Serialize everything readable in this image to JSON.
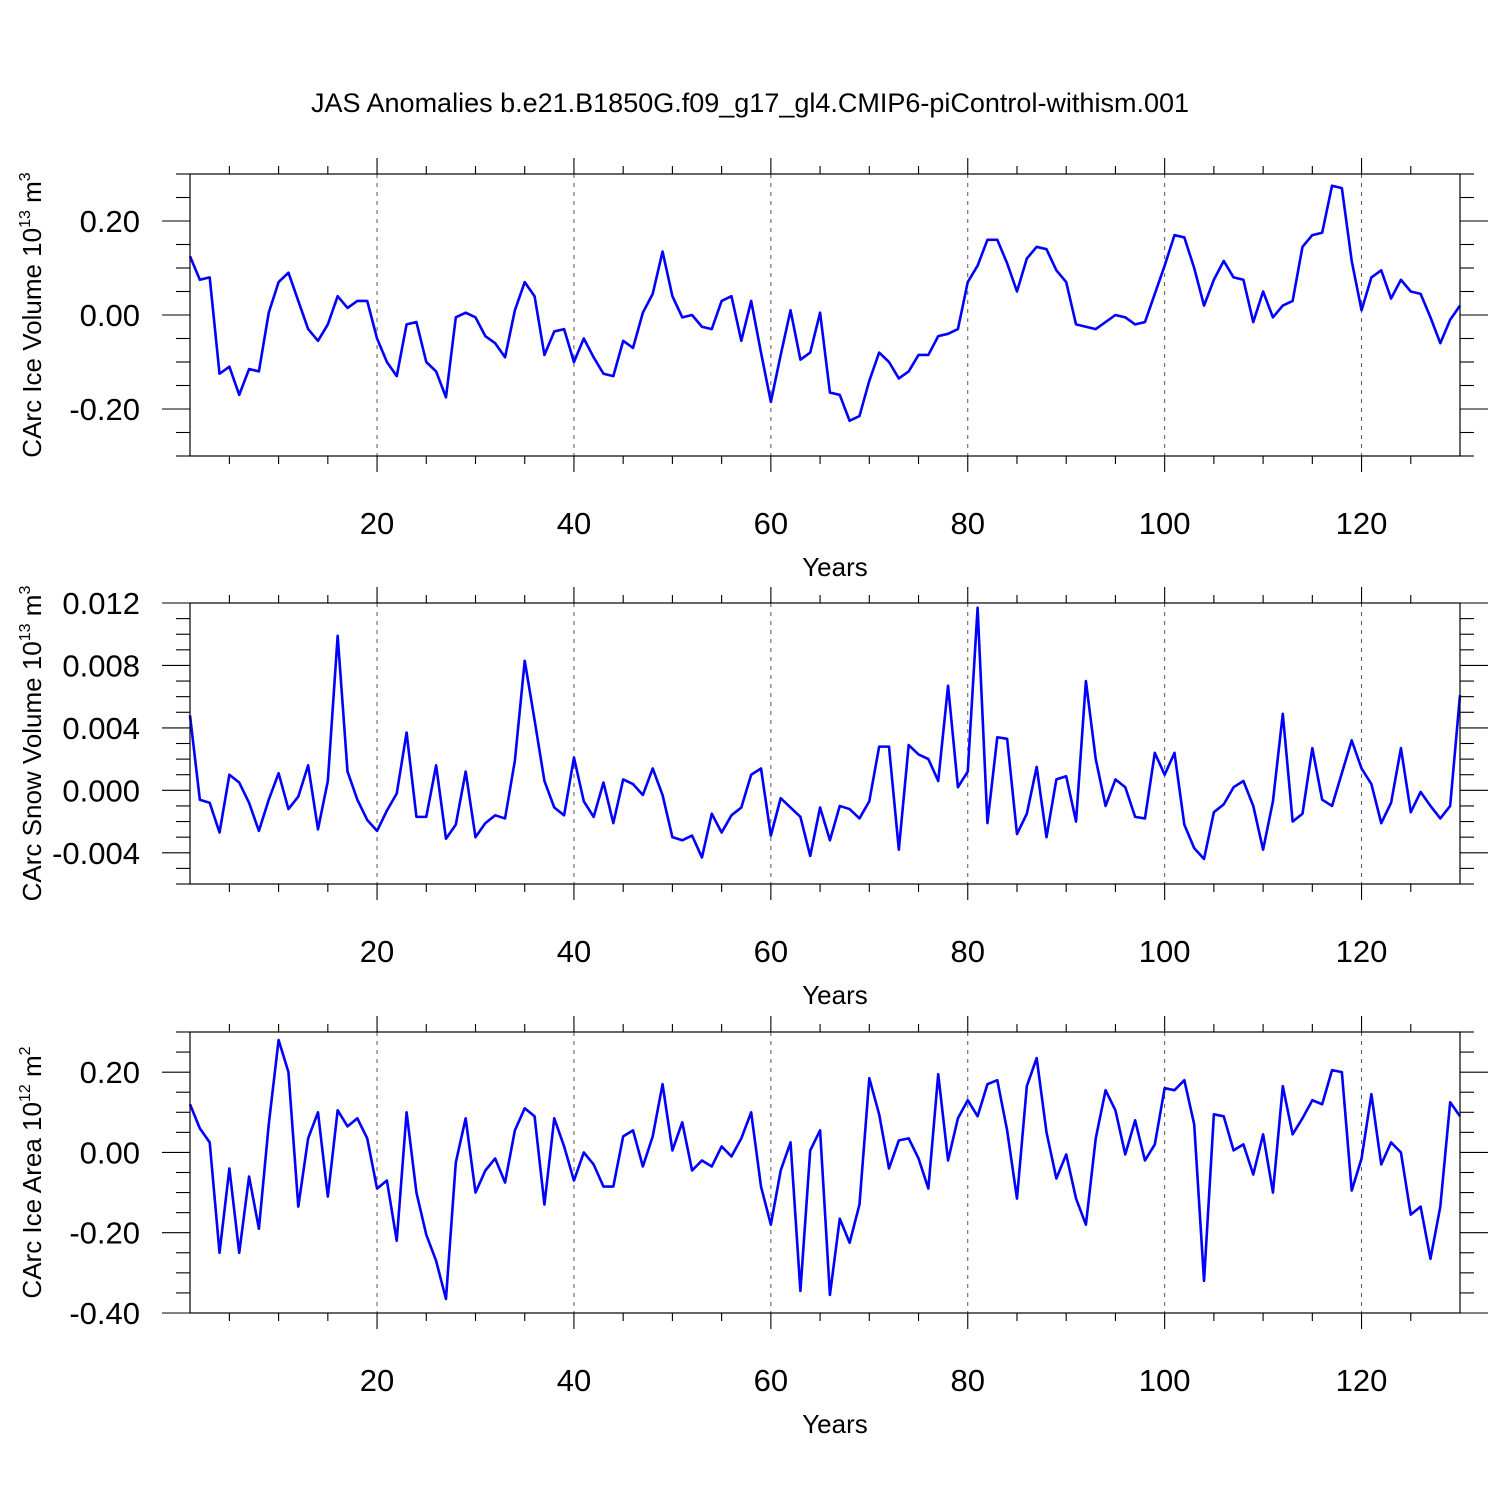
{
  "title": "JAS Anomalies b.e21.B1850G.f09_g17_gl4.CMIP6-piControl-withism.001",
  "chart_data": [
    {
      "type": "line",
      "id": "ice-volume",
      "ylabel_main": "CArc Ice Volume 10",
      "ylabel_exp": "13",
      "ylabel_unit": " m",
      "ylabel_unit_exp": "3",
      "xlabel": "Years",
      "xlim": [
        1,
        130
      ],
      "ylim": [
        -0.3,
        0.3
      ],
      "xticks": [
        20,
        40,
        60,
        80,
        100,
        120
      ],
      "xtick_labels": [
        "20",
        "40",
        "60",
        "80",
        "100",
        "120"
      ],
      "yticks": [
        -0.2,
        0.0,
        0.2
      ],
      "ytick_labels": [
        "-0.20",
        "0.00",
        "0.20"
      ],
      "yminor_step": 0.05,
      "grid": "x-dashed",
      "series": [
        {
          "color": "#0000ff",
          "x_start": 1,
          "values": [
            0.125,
            0.075,
            0.08,
            -0.125,
            -0.11,
            -0.17,
            -0.115,
            -0.12,
            0.005,
            0.07,
            0.09,
            0.03,
            -0.03,
            -0.055,
            -0.02,
            0.04,
            0.015,
            0.03,
            0.03,
            -0.05,
            -0.1,
            -0.13,
            -0.02,
            -0.015,
            -0.1,
            -0.12,
            -0.175,
            -0.005,
            0.005,
            -0.005,
            -0.045,
            -0.06,
            -0.09,
            0.01,
            0.07,
            0.04,
            -0.085,
            -0.035,
            -0.03,
            -0.1,
            -0.05,
            -0.09,
            -0.125,
            -0.13,
            -0.055,
            -0.07,
            0.005,
            0.045,
            0.135,
            0.04,
            -0.005,
            0.0,
            -0.025,
            -0.03,
            0.03,
            0.04,
            -0.055,
            0.03,
            -0.08,
            -0.185,
            -0.085,
            0.01,
            -0.095,
            -0.08,
            0.005,
            -0.165,
            -0.17,
            -0.225,
            -0.215,
            -0.14,
            -0.08,
            -0.1,
            -0.135,
            -0.12,
            -0.085,
            -0.085,
            -0.045,
            -0.04,
            -0.03,
            0.07,
            0.105,
            0.16,
            0.16,
            0.11,
            0.05,
            0.12,
            0.145,
            0.14,
            0.095,
            0.07,
            -0.02,
            -0.025,
            -0.03,
            -0.015,
            0.0,
            -0.005,
            -0.02,
            -0.015,
            0.045,
            0.105,
            0.17,
            0.165,
            0.1,
            0.02,
            0.075,
            0.115,
            0.08,
            0.075,
            -0.015,
            0.05,
            -0.005,
            0.02,
            0.03,
            0.145,
            0.17,
            0.175,
            0.275,
            0.27,
            0.115,
            0.01,
            0.08,
            0.095,
            0.035,
            0.075,
            0.05,
            0.045,
            -0.005,
            -0.06,
            -0.01,
            0.02
          ]
        }
      ]
    },
    {
      "type": "line",
      "id": "snow-volume",
      "ylabel_main": "CArc Snow Volume 10",
      "ylabel_exp": "13",
      "ylabel_unit": " m",
      "ylabel_unit_exp": "3",
      "xlabel": "Years",
      "xlim": [
        1,
        130
      ],
      "ylim": [
        -0.006,
        0.012
      ],
      "xticks": [
        20,
        40,
        60,
        80,
        100,
        120
      ],
      "xtick_labels": [
        "20",
        "40",
        "60",
        "80",
        "100",
        "120"
      ],
      "yticks": [
        -0.004,
        0.0,
        0.004,
        0.008,
        0.012
      ],
      "ytick_labels": [
        "-0.004",
        "0.000",
        "0.004",
        "0.008",
        "0.012"
      ],
      "yminor_step": 0.001,
      "grid": "x-dashed",
      "series": [
        {
          "color": "#0000ff",
          "x_start": 1,
          "values": [
            0.0048,
            -0.0006,
            -0.0008,
            -0.0027,
            0.001,
            0.0005,
            -0.0008,
            -0.0026,
            -0.0006,
            0.0011,
            -0.0012,
            -0.0004,
            0.0016,
            -0.0025,
            0.0006,
            0.0099,
            0.0012,
            -0.0006,
            -0.0019,
            -0.0026,
            -0.0013,
            -0.0002,
            0.0037,
            -0.0017,
            -0.0017,
            0.0016,
            -0.0031,
            -0.0022,
            0.0012,
            -0.003,
            -0.0021,
            -0.0016,
            -0.0018,
            0.0019,
            0.0083,
            0.0045,
            0.0006,
            -0.0011,
            -0.0016,
            0.0021,
            -0.0007,
            -0.0017,
            0.0005,
            -0.0021,
            0.0007,
            0.0004,
            -0.0003,
            0.0014,
            -0.0003,
            -0.003,
            -0.0032,
            -0.0029,
            -0.0043,
            -0.0015,
            -0.0027,
            -0.0016,
            -0.0011,
            0.001,
            0.0014,
            -0.0029,
            -0.0005,
            -0.0011,
            -0.0017,
            -0.0042,
            -0.0011,
            -0.0032,
            -0.001,
            -0.0012,
            -0.0018,
            -0.0007,
            0.0028,
            0.0028,
            -0.0038,
            0.0029,
            0.0023,
            0.002,
            0.0006,
            0.0067,
            0.0002,
            0.0012,
            0.0117,
            -0.0021,
            0.0034,
            0.0033,
            -0.0028,
            -0.0015,
            0.0015,
            -0.003,
            0.0007,
            0.0009,
            -0.002,
            0.007,
            0.002,
            -0.001,
            0.0007,
            0.0002,
            -0.0017,
            -0.0018,
            0.0024,
            0.001,
            0.0024,
            -0.0022,
            -0.0037,
            -0.0044,
            -0.0014,
            -0.0009,
            0.0002,
            0.0006,
            -0.001,
            -0.0038,
            -0.0007,
            0.0049,
            -0.002,
            -0.0015,
            0.0027,
            -0.0006,
            -0.001,
            0.0011,
            0.0032,
            0.0014,
            0.0004,
            -0.0021,
            -0.0008,
            0.0027,
            -0.0014,
            -0.0001,
            -0.001,
            -0.0018,
            -0.001,
            0.0061
          ]
        }
      ]
    },
    {
      "type": "line",
      "id": "ice-area",
      "ylabel_main": "CArc Ice Area 10",
      "ylabel_exp": "12",
      "ylabel_unit": " m",
      "ylabel_unit_exp": "2",
      "xlabel": "Years",
      "xlim": [
        1,
        130
      ],
      "ylim": [
        -0.4,
        0.3
      ],
      "xticks": [
        20,
        40,
        60,
        80,
        100,
        120
      ],
      "xtick_labels": [
        "20",
        "40",
        "60",
        "80",
        "100",
        "120"
      ],
      "yticks": [
        -0.4,
        -0.2,
        0.0,
        0.2
      ],
      "ytick_labels": [
        "-0.40",
        "-0.20",
        "0.00",
        "0.20"
      ],
      "yminor_step": 0.05,
      "grid": "x-dashed",
      "series": [
        {
          "color": "#0000ff",
          "x_start": 1,
          "values": [
            0.12,
            0.06,
            0.025,
            -0.25,
            -0.04,
            -0.25,
            -0.06,
            -0.19,
            0.07,
            0.28,
            0.2,
            -0.135,
            0.035,
            0.1,
            -0.11,
            0.105,
            0.065,
            0.085,
            0.035,
            -0.09,
            -0.07,
            -0.22,
            0.1,
            -0.1,
            -0.205,
            -0.27,
            -0.365,
            -0.025,
            0.085,
            -0.1,
            -0.045,
            -0.015,
            -0.075,
            0.055,
            0.11,
            0.09,
            -0.13,
            0.085,
            0.015,
            -0.07,
            0.0,
            -0.03,
            -0.085,
            -0.085,
            0.04,
            0.055,
            -0.035,
            0.04,
            0.17,
            0.005,
            0.075,
            -0.045,
            -0.02,
            -0.035,
            0.015,
            -0.01,
            0.035,
            0.1,
            -0.085,
            -0.18,
            -0.045,
            0.025,
            -0.345,
            0.005,
            0.055,
            -0.355,
            -0.165,
            -0.225,
            -0.13,
            0.185,
            0.095,
            -0.04,
            0.03,
            0.035,
            -0.015,
            -0.09,
            0.195,
            -0.02,
            0.085,
            0.13,
            0.09,
            0.17,
            0.18,
            0.055,
            -0.115,
            0.165,
            0.235,
            0.05,
            -0.065,
            -0.005,
            -0.115,
            -0.18,
            0.035,
            0.155,
            0.105,
            -0.005,
            0.08,
            -0.02,
            0.02,
            0.16,
            0.155,
            0.18,
            0.07,
            -0.32,
            0.095,
            0.09,
            0.005,
            0.02,
            -0.055,
            0.045,
            -0.1,
            0.165,
            0.045,
            0.085,
            0.13,
            0.12,
            0.205,
            0.2,
            -0.095,
            -0.015,
            0.145,
            -0.03,
            0.025,
            0.0,
            -0.155,
            -0.135,
            -0.265,
            -0.135,
            0.125,
            0.09
          ]
        }
      ]
    }
  ]
}
